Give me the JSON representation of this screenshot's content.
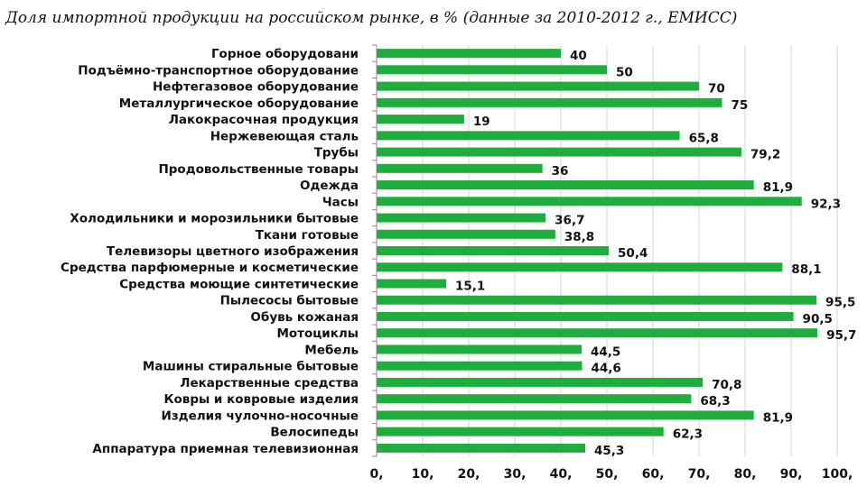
{
  "chart_data": {
    "type": "bar",
    "orientation": "horizontal",
    "title": "Доля импортной продукции на российском рынке, в % (данные за 2010-2012 г., ЕМИСС)",
    "categories": [
      "Горное оборудовани",
      "Подъёмно-транспортное оборудование",
      "Нефтегазовое оборудование",
      "Металлургическое оборудование",
      "Лакокрасочная продукция",
      "Нержевеющая сталь",
      "Трубы",
      "Продовольственные товары",
      "Одежда",
      "Часы",
      "Холодильники и морозильники бытовые",
      "Ткани готовые",
      "Телевизоры цветного изображения",
      "Средства парфюмерные и косметические",
      "Средства моющие синтетические",
      "Пылесосы бытовые",
      "Обувь кожаная",
      "Мотоциклы",
      "Мебель",
      "Машины стиральные бытовые",
      "Лекарственные средства",
      "Ковры и ковровые изделия",
      "Изделия чулочно-носочные",
      "Велосипеды",
      "Аппаратура приемная телевизионная"
    ],
    "values": [
      40,
      50,
      70,
      75,
      19,
      65.8,
      79.2,
      36,
      81.9,
      92.3,
      36.7,
      38.8,
      50.4,
      88.1,
      15.1,
      95.5,
      90.5,
      95.7,
      44.5,
      44.6,
      70.8,
      68.3,
      81.9,
      62.3,
      45.3
    ],
    "value_labels": [
      "40",
      "50",
      "70",
      "75",
      "19",
      "65,8",
      "79,2",
      "36",
      "81,9",
      "92,3",
      "36,7",
      "38,8",
      "50,4",
      "88,1",
      "15,1",
      "95,5",
      "90,5",
      "95,7",
      "44,5",
      "44,6",
      "70,8",
      "68,3",
      "81,9",
      "62,3",
      "45,3"
    ],
    "xlim": [
      0,
      100
    ],
    "x_ticks": [
      0,
      10,
      20,
      30,
      40,
      50,
      60,
      70,
      80,
      90,
      100
    ],
    "x_tick_labels": [
      "0,",
      "10,",
      "20,",
      "30,",
      "40,",
      "50,",
      "60,",
      "70,",
      "80,",
      "90,",
      "100,"
    ],
    "grid": "vertical",
    "bar_color": "#1fae3e",
    "grid_color": "#d6d6d6",
    "xlabel": "",
    "ylabel": ""
  }
}
